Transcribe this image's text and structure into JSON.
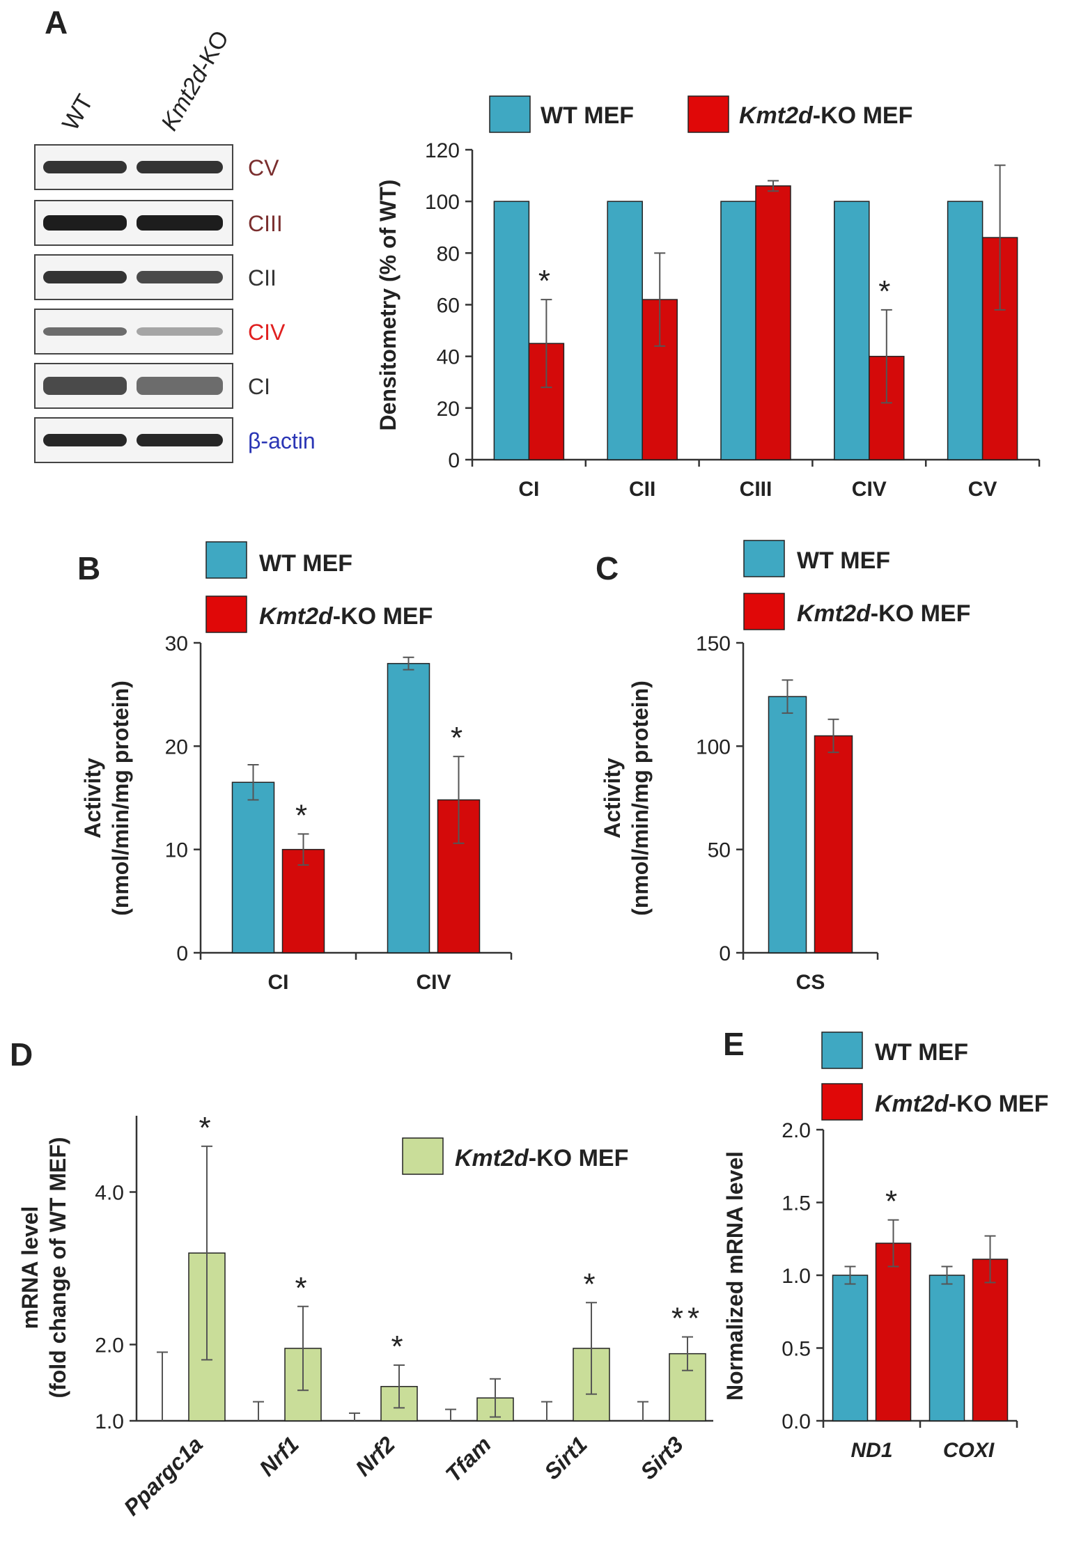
{
  "colors": {
    "wt": "#3fa8c2",
    "ko": "#d40a0a",
    "ko_green": "#c9dd99",
    "axis": "#333333",
    "err": "#555555"
  },
  "panels": {
    "A": {
      "letter": "A"
    },
    "B": {
      "letter": "B"
    },
    "C": {
      "letter": "C"
    },
    "D": {
      "letter": "D"
    },
    "E": {
      "letter": "E"
    }
  },
  "blot": {
    "lane_labels": [
      "WT",
      "Kmt2d",
      "-KO"
    ],
    "bands": [
      {
        "label": "CV",
        "color": "#7a2e2e"
      },
      {
        "label": "CIII",
        "color": "#7a2e2e"
      },
      {
        "label": "CII",
        "color": "#333333"
      },
      {
        "label": "CIV",
        "color": "#e02020"
      },
      {
        "label": "CI",
        "color": "#333333"
      },
      {
        "label": "β-actin",
        "color": "#2a35b5"
      }
    ]
  },
  "legend": {
    "wt": "WT MEF",
    "ko_italic": "Kmt2d",
    "ko_rest": "-KO MEF"
  },
  "chart_data": [
    {
      "panel": "A",
      "type": "bar",
      "categories": [
        "CI",
        "CII",
        "CIII",
        "CIV",
        "CV"
      ],
      "series": [
        {
          "name": "WT MEF",
          "values": [
            100,
            100,
            100,
            100,
            100
          ],
          "errors": [
            0,
            0,
            0,
            0,
            0
          ]
        },
        {
          "name": "Kmt2d-KO MEF",
          "values": [
            45,
            62,
            106,
            40,
            86
          ],
          "errors": [
            17,
            18,
            2,
            18,
            28
          ]
        }
      ],
      "significance": [
        "*",
        "",
        "",
        "*",
        ""
      ],
      "ylabel": "Densitometry (% of WT)",
      "yticks": [
        "0",
        "20",
        "40",
        "60",
        "80",
        "100",
        "120"
      ],
      "ylim": [
        0,
        120
      ]
    },
    {
      "panel": "B",
      "type": "bar",
      "categories": [
        "CI",
        "CIV"
      ],
      "series": [
        {
          "name": "WT MEF",
          "values": [
            16.5,
            28
          ],
          "errors": [
            1.7,
            0.6
          ]
        },
        {
          "name": "Kmt2d-KO MEF",
          "values": [
            10,
            14.8
          ],
          "errors": [
            1.5,
            4.2
          ]
        }
      ],
      "significance": [
        "*",
        "*"
      ],
      "ylabel": [
        "Activity",
        "(nmol/min/mg protein)"
      ],
      "yticks": [
        "0",
        "10",
        "20",
        "30"
      ],
      "ylim": [
        0,
        30
      ]
    },
    {
      "panel": "C",
      "type": "bar",
      "categories": [
        "CS"
      ],
      "series": [
        {
          "name": "WT MEF",
          "values": [
            124
          ],
          "errors": [
            8
          ]
        },
        {
          "name": "Kmt2d-KO MEF",
          "values": [
            105
          ],
          "errors": [
            8
          ]
        }
      ],
      "significance": [
        ""
      ],
      "ylabel": [
        "Activity",
        "(nmol/min/mg protein)"
      ],
      "yticks": [
        "0",
        "50",
        "100",
        "150"
      ],
      "ylim": [
        0,
        150
      ]
    },
    {
      "panel": "D",
      "type": "bar",
      "categories": [
        "Ppargc1a",
        "Nrf1",
        "Nrf2",
        "Tfam",
        "Sirt1",
        "Sirt3"
      ],
      "series": [
        {
          "name": "WT MEF",
          "values": [
            1.0,
            1.0,
            1.0,
            1.0,
            1.0,
            1.0
          ],
          "errors": [
            0.9,
            0.25,
            0.1,
            0.15,
            0.25,
            0.25
          ]
        },
        {
          "name": "Kmt2d-KO MEF",
          "values": [
            3.2,
            1.95,
            1.45,
            1.3,
            1.95,
            1.88
          ],
          "errors": [
            1.4,
            0.55,
            0.28,
            0.25,
            0.6,
            0.22
          ]
        }
      ],
      "significance": [
        "*",
        "*",
        "*",
        "",
        "*",
        "**"
      ],
      "ylabel": [
        "mRNA level",
        "(fold change of WT MEF)"
      ],
      "yticks": [
        "1.0",
        "2.0",
        "4.0"
      ],
      "ylim": [
        1.0,
        5.0
      ]
    },
    {
      "panel": "E",
      "type": "bar",
      "categories": [
        "ND1",
        "COXI"
      ],
      "series": [
        {
          "name": "WT MEF",
          "values": [
            1.0,
            1.0
          ],
          "errors": [
            0.06,
            0.06
          ]
        },
        {
          "name": "Kmt2d-KO MEF",
          "values": [
            1.22,
            1.11
          ],
          "errors": [
            0.16,
            0.16
          ]
        }
      ],
      "significance": [
        "*",
        ""
      ],
      "ylabel": "Normalized mRNA level",
      "yticks": [
        "0.0",
        "0.5",
        "1.0",
        "1.5",
        "2.0"
      ],
      "ylim": [
        0,
        2.0
      ]
    }
  ]
}
